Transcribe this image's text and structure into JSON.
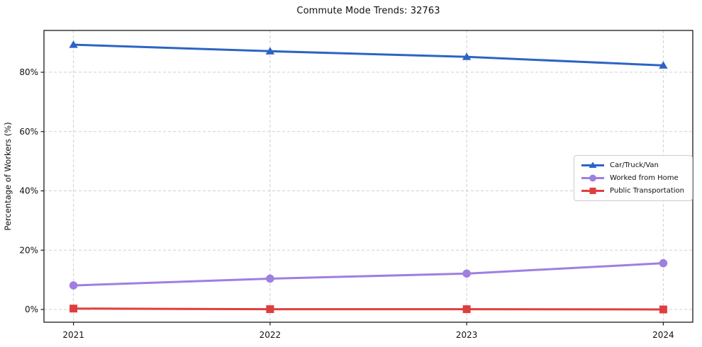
{
  "figure": {
    "background": "#ffffff",
    "text_color": "#111111",
    "grid_color": "#cfcfcf",
    "spine_color": "#1a1a1a"
  },
  "chart_data": {
    "type": "line",
    "title": "Commute Mode Trends: 32763",
    "xlabel": "",
    "ylabel": "Percentage of Workers (%)",
    "x": [
      2021,
      2022,
      2023,
      2024
    ],
    "xtick_labels": [
      "2021",
      "2022",
      "2023",
      "2024"
    ],
    "series": [
      {
        "name": "Car/Truck/Van",
        "color": "#2d64c4",
        "marker": "triangle",
        "values": [
          89.3,
          87.1,
          85.2,
          82.3
        ]
      },
      {
        "name": "Worked from Home",
        "color": "#9f7fe0",
        "marker": "circle",
        "values": [
          8.1,
          10.4,
          12.1,
          15.6
        ]
      },
      {
        "name": "Public Transportation",
        "color": "#e03e3e",
        "marker": "square",
        "values": [
          0.3,
          0.1,
          0.1,
          0.0
        ]
      }
    ],
    "yticks": [
      0,
      20,
      40,
      60,
      80
    ],
    "ytick_labels": [
      "0%",
      "20%",
      "40%",
      "60%",
      "80%"
    ],
    "ylim": [
      -4.3,
      94.1
    ],
    "xlim": [
      2020.85,
      2024.15
    ],
    "grid": {
      "style": "dashed",
      "on": true
    },
    "legend": {
      "position": "center-right",
      "border_color": "#cccccc"
    }
  }
}
